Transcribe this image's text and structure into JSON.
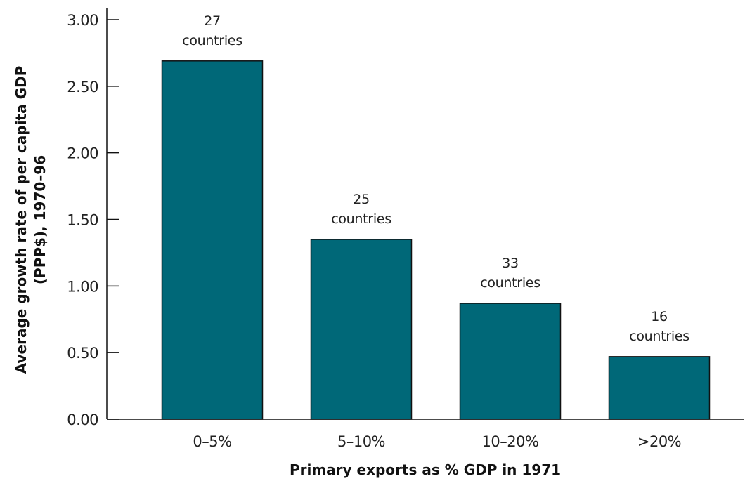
{
  "chart_data": {
    "type": "bar",
    "categories": [
      "0–5%",
      "5–10%",
      "10–20%",
      ">20%"
    ],
    "values": [
      2.69,
      1.35,
      0.87,
      0.47
    ],
    "bar_labels": [
      [
        "27",
        "countries"
      ],
      [
        "25",
        "countries"
      ],
      [
        "33",
        "countries"
      ],
      [
        "16",
        "countries"
      ]
    ],
    "xlabel": "Primary exports as % GDP in 1971",
    "ylabel_lines": [
      "Average growth rate of per capita GDP",
      "(PPP$), 1970–96"
    ],
    "yticks": [
      "0.00",
      "0.50",
      "1.00",
      "1.50",
      "2.00",
      "2.50",
      "3.00"
    ],
    "ylim": [
      0,
      3.0
    ],
    "bar_color": "#006878",
    "grid": false,
    "legend": "none"
  }
}
